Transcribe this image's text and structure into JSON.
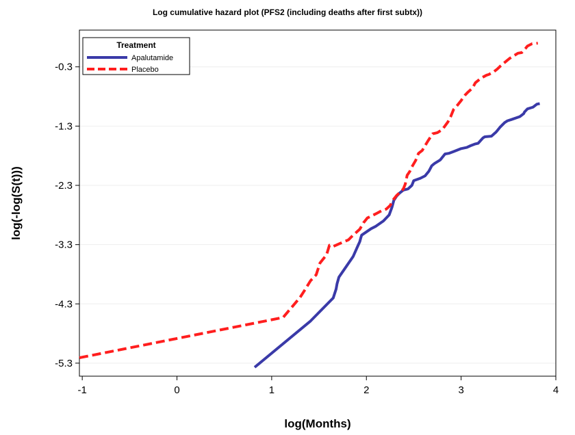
{
  "chart_data": {
    "type": "line",
    "title": "Log cumulative hazard plot  (PFS2 (including deaths after first subtx))",
    "xlabel": "log(Months)",
    "ylabel": "log(-log(S(t)))",
    "xlim": [
      -1.03,
      4.0
    ],
    "ylim": [
      -5.52,
      0.32
    ],
    "xticks": [
      -1,
      0,
      1,
      2,
      3,
      4
    ],
    "xtick_labels": [
      "-1",
      "0",
      "1",
      "2",
      "3",
      "4"
    ],
    "yticks": [
      -5.3,
      -4.3,
      -3.3,
      -2.3,
      -1.3,
      -0.3
    ],
    "ytick_labels": [
      "-5.3",
      "-4.3",
      "-3.3",
      "-2.3",
      "-1.3",
      "-0.3"
    ],
    "grid": "horizontal",
    "legend": {
      "title": "Treatment",
      "position": "top-left"
    },
    "series": [
      {
        "name": "Apalutamide",
        "color": "#3a3aa8",
        "style": "solid",
        "x": [
          0.82,
          1.41,
          1.65,
          1.68,
          1.69,
          1.71,
          1.86,
          1.91,
          1.93,
          1.94,
          1.95,
          2.05,
          2.1,
          2.18,
          2.24,
          2.27,
          2.29,
          2.32,
          2.35,
          2.39,
          2.44,
          2.48,
          2.5,
          2.57,
          2.62,
          2.66,
          2.69,
          2.72,
          2.78,
          2.83,
          2.87,
          2.92,
          3.0,
          3.06,
          3.1,
          3.15,
          3.18,
          3.23,
          3.25,
          3.32,
          3.37,
          3.41,
          3.46,
          3.49,
          3.53,
          3.62,
          3.66,
          3.67,
          3.7,
          3.74,
          3.76,
          3.8,
          3.83
        ],
        "y": [
          -5.37,
          -4.59,
          -4.2,
          -4.05,
          -3.96,
          -3.85,
          -3.5,
          -3.32,
          -3.25,
          -3.19,
          -3.14,
          -3.03,
          -2.99,
          -2.9,
          -2.8,
          -2.67,
          -2.55,
          -2.48,
          -2.43,
          -2.38,
          -2.36,
          -2.3,
          -2.22,
          -2.18,
          -2.14,
          -2.06,
          -1.97,
          -1.93,
          -1.87,
          -1.77,
          -1.76,
          -1.73,
          -1.68,
          -1.66,
          -1.63,
          -1.6,
          -1.59,
          -1.5,
          -1.48,
          -1.47,
          -1.4,
          -1.32,
          -1.24,
          -1.21,
          -1.19,
          -1.14,
          -1.09,
          -1.06,
          -1.01,
          -0.99,
          -0.98,
          -0.93,
          -0.92
        ]
      },
      {
        "name": "Placebo",
        "color": "#ff1e1e",
        "style": "dashed",
        "x": [
          -1.03,
          1.12,
          1.3,
          1.36,
          1.41,
          1.47,
          1.51,
          1.55,
          1.58,
          1.61,
          1.65,
          1.75,
          1.81,
          1.86,
          1.93,
          1.97,
          2.01,
          2.1,
          2.17,
          2.21,
          2.25,
          2.28,
          2.32,
          2.36,
          2.39,
          2.41,
          2.43,
          2.46,
          2.48,
          2.52,
          2.55,
          2.59,
          2.62,
          2.65,
          2.7,
          2.75,
          2.8,
          2.86,
          2.89,
          2.92,
          2.96,
          3.0,
          3.04,
          3.07,
          3.12,
          3.15,
          3.21,
          3.27,
          3.29,
          3.34,
          3.38,
          3.42,
          3.48,
          3.51,
          3.55,
          3.6,
          3.64,
          3.68,
          3.7,
          3.75,
          3.81
        ],
        "y": [
          -5.21,
          -4.53,
          -4.19,
          -4.04,
          -3.91,
          -3.81,
          -3.61,
          -3.53,
          -3.47,
          -3.31,
          -3.33,
          -3.26,
          -3.22,
          -3.14,
          -3.04,
          -2.93,
          -2.85,
          -2.78,
          -2.72,
          -2.7,
          -2.64,
          -2.55,
          -2.47,
          -2.41,
          -2.36,
          -2.28,
          -2.13,
          -2.06,
          -1.99,
          -1.88,
          -1.76,
          -1.71,
          -1.63,
          -1.55,
          -1.43,
          -1.41,
          -1.36,
          -1.23,
          -1.14,
          -1.02,
          -0.95,
          -0.87,
          -0.78,
          -0.73,
          -0.66,
          -0.57,
          -0.49,
          -0.44,
          -0.43,
          -0.39,
          -0.34,
          -0.28,
          -0.2,
          -0.16,
          -0.12,
          -0.07,
          -0.06,
          0.01,
          0.05,
          0.09,
          0.1
        ]
      }
    ]
  }
}
